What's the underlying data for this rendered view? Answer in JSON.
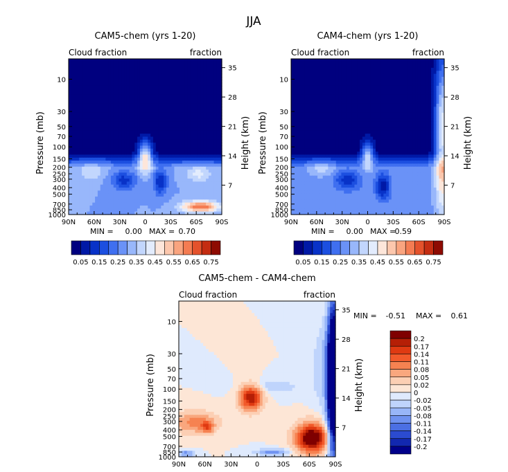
{
  "title": "JJA",
  "chart_data": [
    {
      "type": "heatmap",
      "title": "CAM5-chem (yrs 1-20)",
      "subtitle_left": "Cloud fraction",
      "subtitle_right": "fraction",
      "ylabel": "Pressure (mb)",
      "ylabel_right": "Height (km)",
      "x_ticks": [
        "90N",
        "60N",
        "30N",
        "0",
        "30S",
        "60S",
        "90S"
      ],
      "y_ticks": [
        "10",
        "30",
        "50",
        "70",
        "100",
        "150",
        "200",
        "250",
        "300",
        "400",
        "500",
        "700",
        "850",
        "1000"
      ],
      "height_ticks": [
        "35",
        "28",
        "21",
        "14",
        "7"
      ],
      "min_label": "MIN =",
      "min_value": "0.00",
      "max_label": "MAX =",
      "max_value": "0.70",
      "colorbar_labels": [
        "0.05",
        "0.15",
        "0.25",
        "0.35",
        "0.45",
        "0.55",
        "0.65",
        "0.75"
      ]
    },
    {
      "type": "heatmap",
      "title": "CAM4-chem (yrs 1-20)",
      "subtitle_left": "Cloud fraction",
      "subtitle_right": "fraction",
      "ylabel": "Pressure (mb)",
      "ylabel_right": "Height (km)",
      "x_ticks": [
        "90N",
        "60N",
        "30N",
        "0",
        "30S",
        "60S",
        "90S"
      ],
      "y_ticks": [
        "10",
        "30",
        "50",
        "70",
        "100",
        "150",
        "200",
        "250",
        "300",
        "400",
        "500",
        "700",
        "850",
        "1000"
      ],
      "height_ticks": [
        "35",
        "28",
        "21",
        "14",
        "7"
      ],
      "min_label": "MIN =",
      "min_value": "0.00",
      "max_label": "MAX =",
      "max_value": "0.59",
      "colorbar_labels": [
        "0.05",
        "0.15",
        "0.25",
        "0.35",
        "0.45",
        "0.55",
        "0.65",
        "0.75"
      ]
    },
    {
      "type": "heatmap",
      "title": "CAM5-chem - CAM4-chem",
      "subtitle_left": "Cloud fraction",
      "subtitle_right": "fraction",
      "ylabel": "Pressure (mb)",
      "ylabel_right": "Height (km)",
      "x_ticks": [
        "90N",
        "60N",
        "30N",
        "0",
        "30S",
        "60S",
        "90S"
      ],
      "y_ticks": [
        "10",
        "30",
        "50",
        "70",
        "100",
        "150",
        "200",
        "250",
        "300",
        "400",
        "500",
        "700",
        "850",
        "1000"
      ],
      "height_ticks": [
        "35",
        "28",
        "21",
        "14",
        "7"
      ],
      "min_label": "MIN =",
      "min_value": "-0.51",
      "max_label": "MAX =",
      "max_value": "0.61",
      "colorbar_labels": [
        "0.2",
        "0.17",
        "0.14",
        "0.11",
        "0.08",
        "0.05",
        "0.02",
        "0",
        "-0.02",
        "-0.05",
        "-0.08",
        "-0.11",
        "-0.14",
        "-0.17",
        "-0.2"
      ]
    }
  ],
  "colors": {
    "seq": [
      "#00007f",
      "#0019a6",
      "#0832c8",
      "#1c4fe0",
      "#3f6ff0",
      "#6a92f7",
      "#98b7fb",
      "#c2d6fd",
      "#e3ecfd",
      "#fde6da",
      "#fcc7ad",
      "#f9a47f",
      "#f47c52",
      "#e4522c",
      "#c42d12",
      "#8e0b02"
    ],
    "div_pos": [
      "#7f0000",
      "#b51f06",
      "#df3a12",
      "#f25a2b",
      "#f68251",
      "#f9a77e",
      "#fccfb4",
      "#fde6d6"
    ],
    "div_neg": [
      "#dfeafd",
      "#bfd4fc",
      "#98b6f8",
      "#6f92f0",
      "#4b6fe3",
      "#2b4bd0",
      "#1228b0",
      "#00008a"
    ]
  }
}
